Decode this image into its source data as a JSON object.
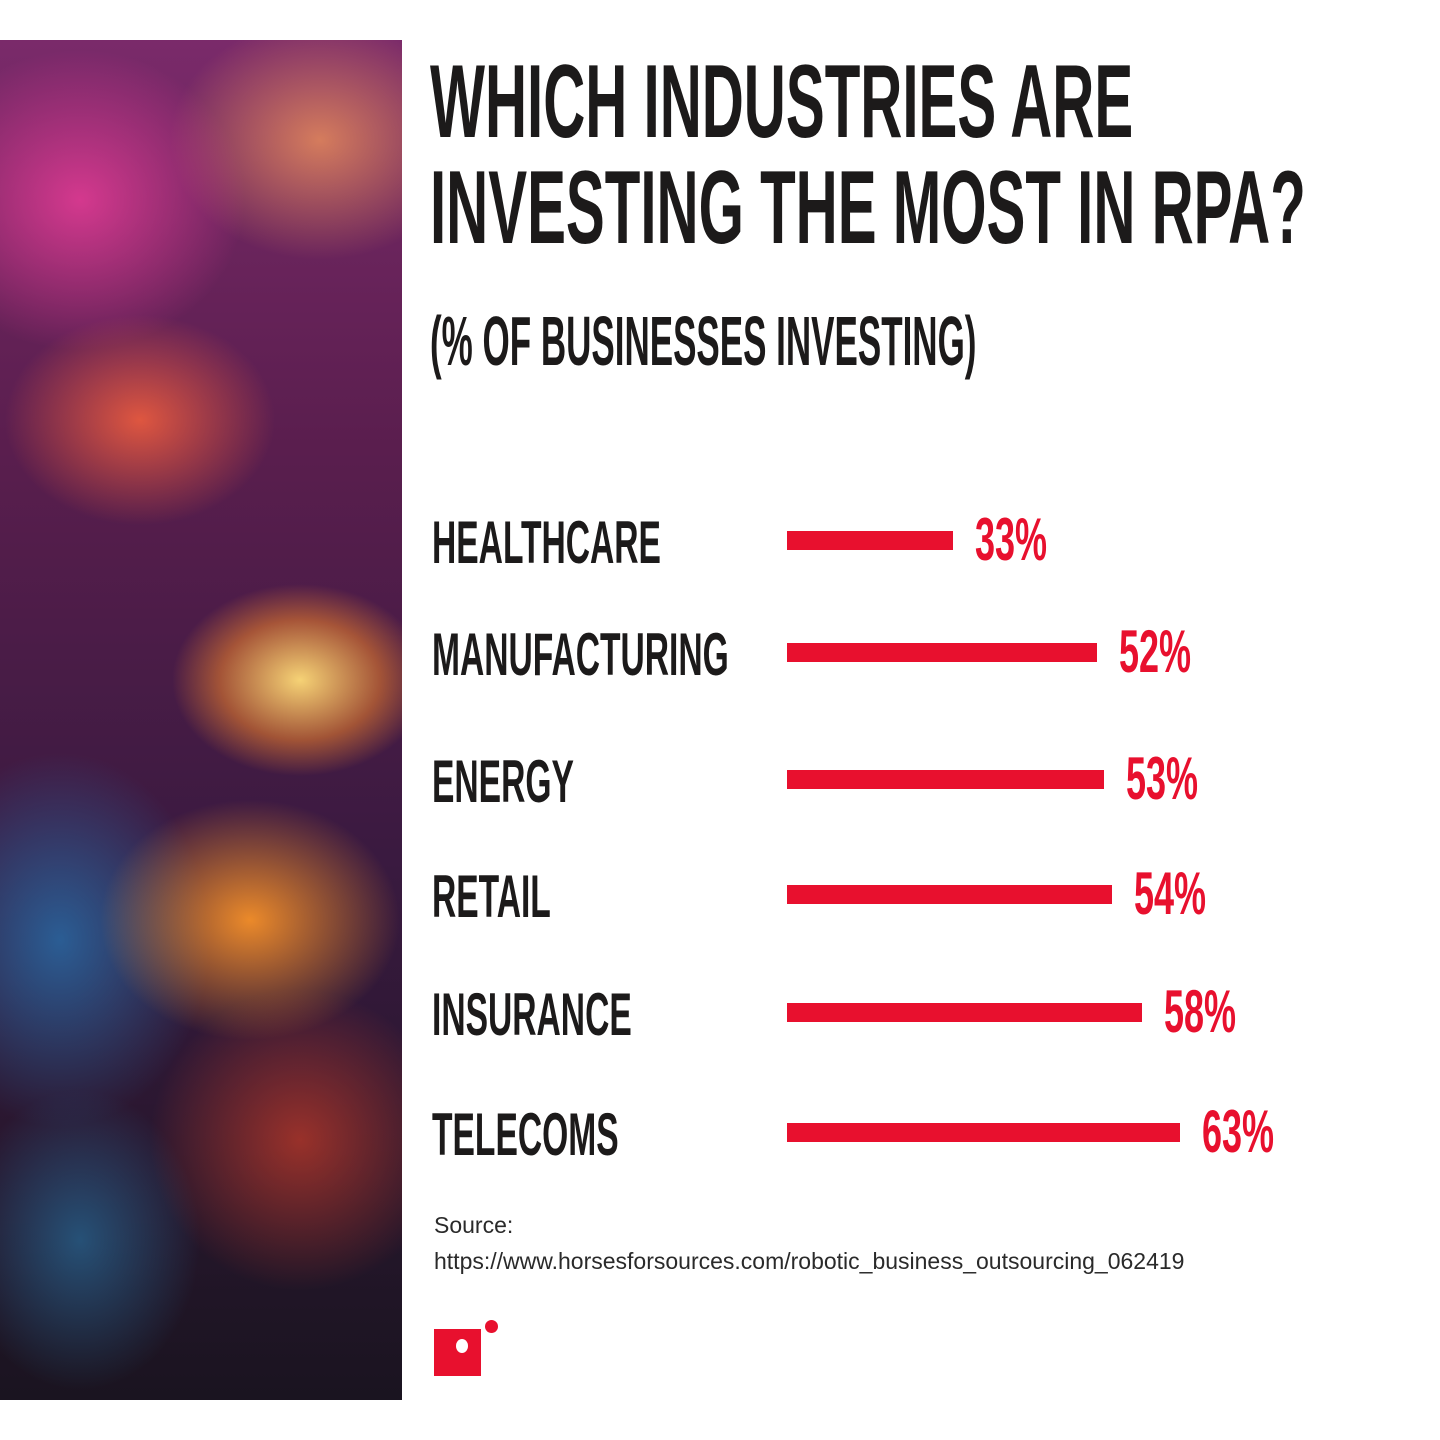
{
  "title_lines": [
    "WHICH INDUSTRIES ARE",
    "INVESTING THE MOST IN RPA?"
  ],
  "subtitle": "(% OF BUSINESSES INVESTING)",
  "source_label": "Source:",
  "source_url": "https://www.horsesforsources.com/robotic_business_outsourcing_062419",
  "colors": {
    "accent": "#e8102e",
    "text": "#1c1a1a"
  },
  "chart_data": {
    "type": "bar",
    "orientation": "horizontal",
    "title": "WHICH INDUSTRIES ARE INVESTING THE MOST IN RPA?",
    "subtitle": "(% OF BUSINESSES INVESTING)",
    "categories": [
      "HEALTHCARE",
      "MANUFACTURING",
      "ENERGY",
      "RETAIL",
      "INSURANCE",
      "TELECOMS"
    ],
    "values": [
      33,
      52,
      53,
      54,
      58,
      63
    ],
    "data_labels": [
      "33%",
      "52%",
      "53%",
      "54%",
      "58%",
      "63%"
    ],
    "unit": "%",
    "grid": false,
    "bar_color": "#e8102e"
  }
}
